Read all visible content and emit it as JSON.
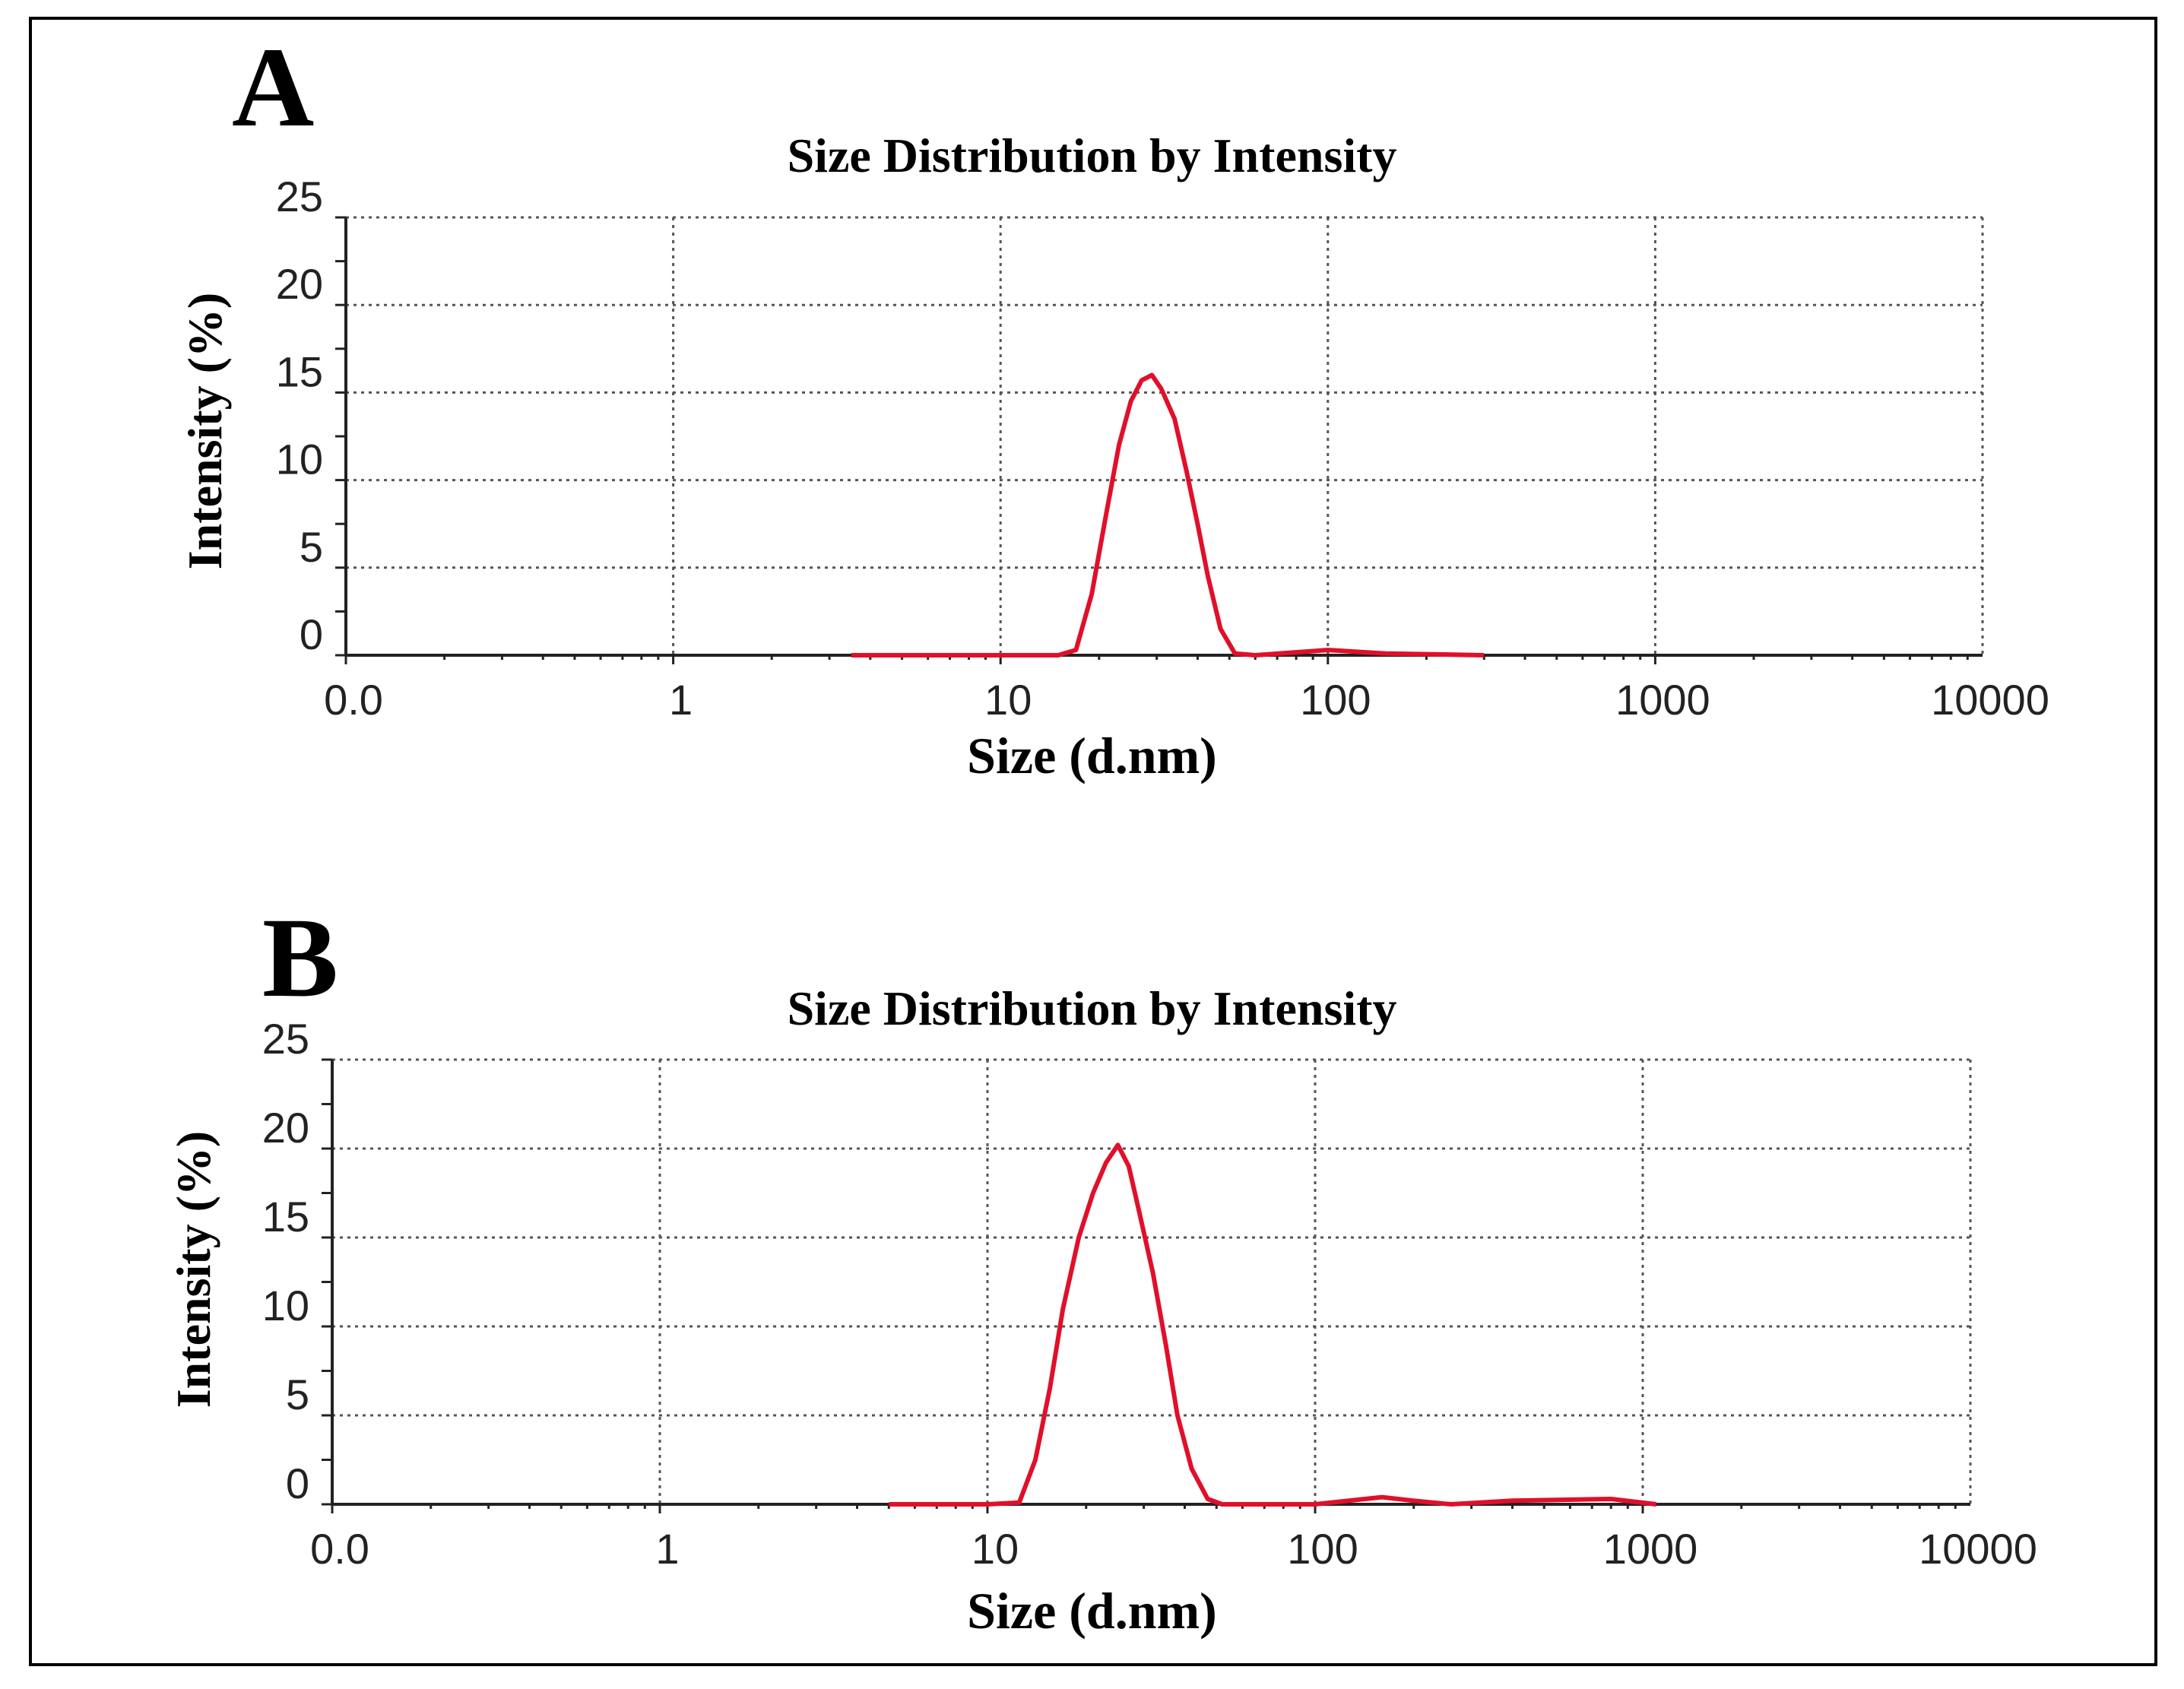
{
  "panels": [
    {
      "letter": "A"
    },
    {
      "letter": "B"
    }
  ],
  "chart_data": [
    {
      "type": "line",
      "panel": "A",
      "title": "Size Distribution by Intensity",
      "xlabel": "Size (d.nm)",
      "ylabel": "Intensity (%)",
      "xscale": "log",
      "xlim": [
        0.1,
        10000
      ],
      "ylim": [
        0,
        25
      ],
      "x_tick_values": [
        0.1,
        1,
        10,
        100,
        1000,
        10000
      ],
      "x_tick_labels": [
        "0.0",
        "1",
        "10",
        "100",
        "1000",
        "10000"
      ],
      "y_tick_values": [
        0,
        5,
        10,
        15,
        20,
        25
      ],
      "y_tick_labels": [
        "0",
        "5",
        "10",
        "15",
        "20",
        "25"
      ],
      "grid": true,
      "line_color": "#e0102a",
      "series": [
        {
          "name": "Intensity",
          "x": [
            3.5,
            10,
            15,
            17,
            19,
            21,
            23,
            25,
            27,
            29,
            31,
            34,
            37,
            40,
            43,
            47,
            52,
            60,
            100,
            150,
            300
          ],
          "y": [
            0,
            0,
            0,
            0.3,
            3.5,
            8,
            12,
            14.5,
            15.7,
            16,
            15.2,
            13.5,
            10.5,
            7.5,
            4.5,
            1.5,
            0.1,
            0,
            0.3,
            0.1,
            0
          ]
        }
      ]
    },
    {
      "type": "line",
      "panel": "B",
      "title": "Size Distribution by Intensity",
      "xlabel": "Size (d.nm)",
      "ylabel": "Intensity (%)",
      "xscale": "log",
      "xlim": [
        0.1,
        10000
      ],
      "ylim": [
        0,
        25
      ],
      "x_tick_values": [
        0.1,
        1,
        10,
        100,
        1000,
        10000
      ],
      "x_tick_labels": [
        "0.0",
        "1",
        "10",
        "100",
        "1000",
        "10000"
      ],
      "y_tick_values": [
        0,
        5,
        10,
        15,
        20,
        25
      ],
      "y_tick_labels": [
        "0",
        "5",
        "10",
        "15",
        "20",
        "25"
      ],
      "grid": true,
      "line_color": "#e0102a",
      "series": [
        {
          "name": "Intensity",
          "x": [
            5,
            10,
            12.5,
            14,
            15.5,
            17,
            19,
            21,
            23,
            25,
            27,
            29,
            32,
            35,
            38,
            42,
            47,
            52,
            60,
            100,
            160,
            200,
            260,
            400,
            800,
            1100
          ],
          "y": [
            0,
            0,
            0.1,
            2.5,
            6.5,
            11,
            15,
            17.5,
            19.2,
            20.2,
            19,
            16.5,
            13,
            9,
            5,
            2,
            0.3,
            0,
            0,
            0,
            0.4,
            0.2,
            0,
            0.2,
            0.3,
            0
          ]
        }
      ]
    }
  ]
}
